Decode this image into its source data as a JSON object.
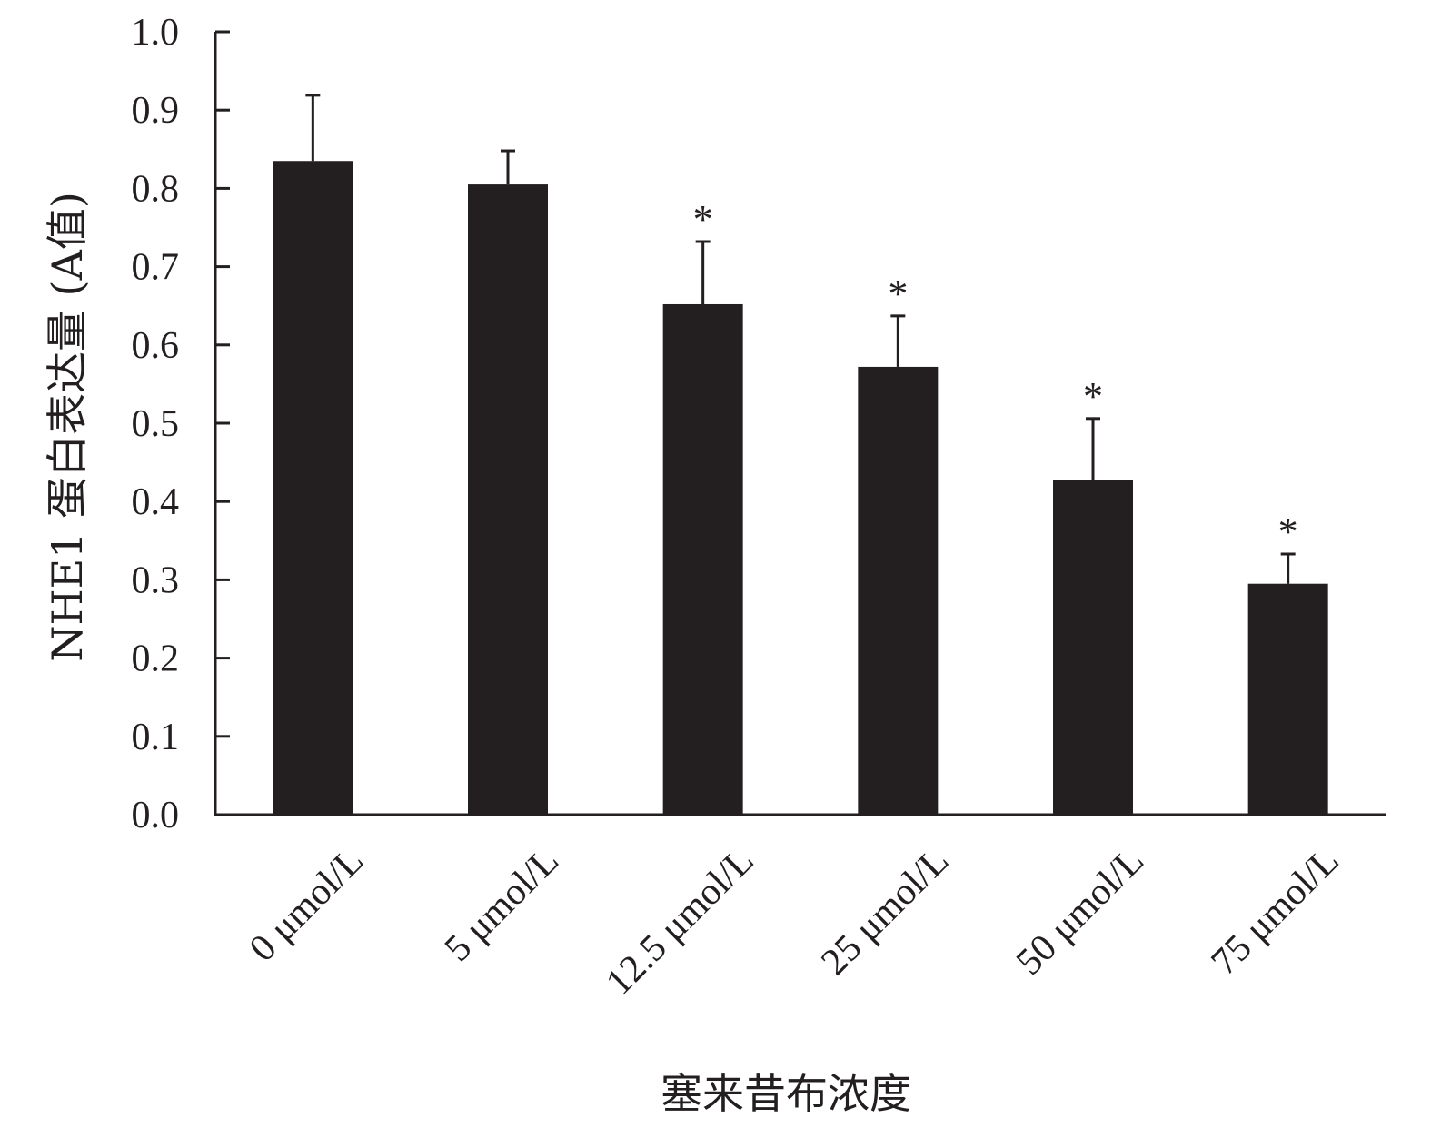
{
  "chart_data": {
    "type": "bar",
    "categories": [
      "0 μmol/L",
      "5 μmol/L",
      "12.5 μmol/L",
      "25 μmol/L",
      "50 μmol/L",
      "75 μmol/L"
    ],
    "values": [
      0.835,
      0.805,
      0.652,
      0.572,
      0.428,
      0.295
    ],
    "errors": [
      0.084,
      0.043,
      0.08,
      0.065,
      0.078,
      0.038
    ],
    "significance": [
      "",
      "",
      "*",
      "*",
      "*",
      "*"
    ],
    "xlabel": "塞来昔布浓度",
    "ylabel": "NHE1 蛋白表达量 (A值)",
    "ylim": [
      0.0,
      1.0
    ],
    "yticks": [
      "0.0",
      "0.1",
      "0.2",
      "0.3",
      "0.4",
      "0.5",
      "0.6",
      "0.7",
      "0.8",
      "0.9",
      "1.0"
    ],
    "bar_color": "#231f20",
    "grid": false,
    "legend": "none"
  }
}
